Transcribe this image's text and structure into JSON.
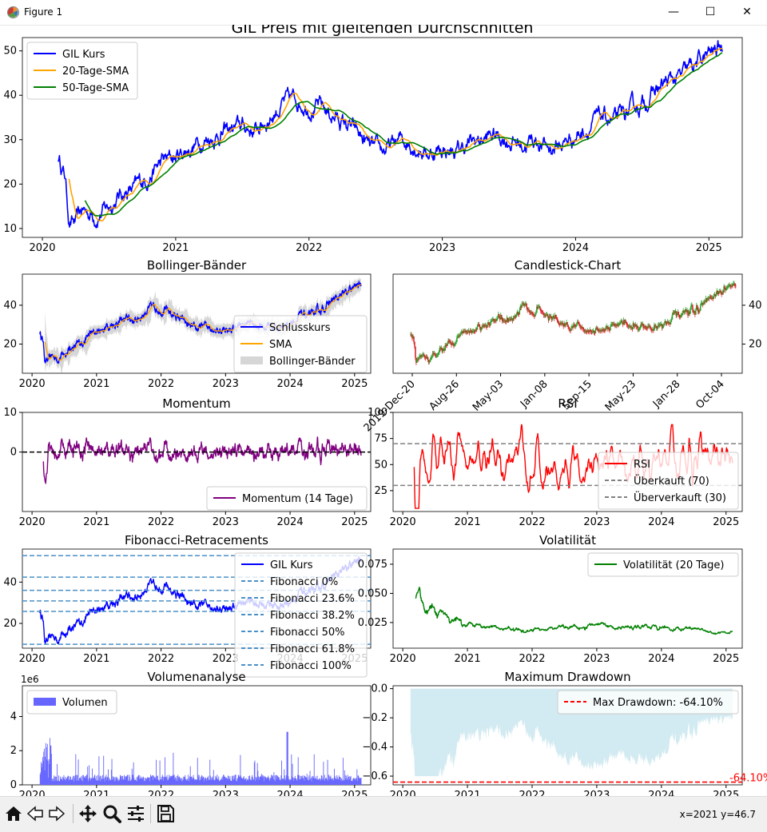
{
  "window": {
    "title": "Figure 1",
    "minimize": "—",
    "maximize": "☐",
    "close": "✕"
  },
  "statusbar": {
    "coords": "x=2021 y=46.7"
  },
  "toolbar": {
    "icons": [
      "home-icon",
      "back-icon",
      "forward-icon",
      "pan-icon",
      "zoom-icon",
      "configure-icon",
      "save-icon"
    ]
  },
  "colors": {
    "price": "#0000ff",
    "sma20": "#ffa500",
    "sma50": "#008000",
    "momentum": "#800080",
    "rsi": "#ff0000",
    "fib": "#4a90c8",
    "drawdown": "#add8e6",
    "volume": "#6666ff"
  },
  "chart_data": [
    {
      "id": "main",
      "type": "line",
      "title": "GIL Preis mit gleitenden Durchschnitten",
      "x_ticks": [
        "2020",
        "2021",
        "2022",
        "2023",
        "2024",
        "2025"
      ],
      "y_ticks": [
        "10",
        "20",
        "30",
        "40",
        "50"
      ],
      "ylim": [
        8,
        53
      ],
      "xlim": [
        2019.85,
        2025.25
      ],
      "legend": [
        "GIL Kurs",
        "20-Tage-SMA",
        "50-Tage-SMA"
      ],
      "legend_loc": "upper left",
      "grid": false,
      "x": [
        2020.12,
        2020.17,
        2020.2,
        2020.25,
        2020.3,
        2020.4,
        2020.5,
        2020.6,
        2020.7,
        2020.8,
        2020.9,
        2021.0,
        2021.1,
        2021.2,
        2021.3,
        2021.4,
        2021.5,
        2021.6,
        2021.7,
        2021.8,
        2021.9,
        2022.0,
        2022.1,
        2022.2,
        2022.3,
        2022.4,
        2022.5,
        2022.6,
        2022.7,
        2022.8,
        2022.9,
        2023.0,
        2023.1,
        2023.2,
        2023.3,
        2023.4,
        2023.5,
        2023.6,
        2023.7,
        2023.8,
        2023.9,
        2024.0,
        2024.1,
        2024.2,
        2024.3,
        2024.4,
        2024.5,
        2024.6,
        2024.7,
        2024.8,
        2024.9,
        2025.0,
        2025.1
      ],
      "series": [
        {
          "name": "GIL Kurs",
          "values": [
            26,
            22,
            12,
            11,
            14,
            13,
            15,
            18,
            19,
            22,
            25,
            26,
            28,
            30,
            31,
            32,
            33,
            32,
            35,
            38,
            39,
            38,
            37,
            35,
            33,
            30,
            27,
            28,
            30,
            29,
            27,
            28,
            27,
            29,
            30,
            31,
            30,
            29,
            30,
            28,
            29,
            31,
            33,
            35,
            34,
            36,
            38,
            41,
            43,
            44,
            47,
            49,
            51
          ]
        },
        {
          "name": "20-Tage-SMA",
          "values": [
            null,
            null,
            null,
            14,
            13,
            13,
            14,
            17,
            19,
            21,
            24,
            26,
            27,
            29,
            30,
            31,
            32,
            32,
            34,
            37,
            38,
            38,
            37,
            35,
            33,
            31,
            28,
            28,
            29,
            29,
            28,
            28,
            27,
            28,
            29,
            30,
            30,
            29,
            29,
            29,
            28,
            30,
            32,
            34,
            34,
            35,
            37,
            40,
            42,
            44,
            46,
            48,
            49
          ]
        },
        {
          "name": "50-Tage-SMA",
          "values": [
            null,
            null,
            null,
            null,
            null,
            15,
            14,
            15,
            17,
            19,
            22,
            24,
            26,
            28,
            29,
            30,
            31,
            32,
            33,
            36,
            37,
            38,
            37,
            36,
            34,
            32,
            29,
            28,
            28,
            29,
            28,
            28,
            28,
            28,
            29,
            29,
            30,
            30,
            29,
            29,
            28,
            29,
            31,
            33,
            34,
            35,
            36,
            38,
            41,
            43,
            45,
            47,
            49
          ]
        }
      ]
    },
    {
      "id": "bollinger",
      "type": "line",
      "title": "Bollinger-Bänder",
      "x_ticks": [
        "2020",
        "2021",
        "2022",
        "2023",
        "2024",
        "2025"
      ],
      "y_ticks": [
        "20",
        "40"
      ],
      "ylim": [
        5,
        56
      ],
      "legend": [
        "Schlusskurs",
        "SMA",
        "Bollinger-Bänder"
      ],
      "legend_loc": "lower right"
    },
    {
      "id": "candlestick",
      "type": "candlestick",
      "title": "Candlestick-Chart",
      "x_ticks": [
        "2019-Dec-20",
        "Aug-26",
        "May-03",
        "Jan-08",
        "Sep-15",
        "May-23",
        "Jan-28",
        "Oct-04"
      ],
      "y_ticks": [
        "20",
        "40"
      ],
      "ylim": [
        5,
        56
      ],
      "y_axis_side": "right"
    },
    {
      "id": "momentum",
      "type": "line",
      "title": "Momentum",
      "x_ticks": [
        "2020",
        "2021",
        "2022",
        "2023",
        "2024",
        "2025"
      ],
      "y_ticks": [
        "0",
        "10"
      ],
      "ylim": [
        -15,
        10
      ],
      "legend": [
        "Momentum (14 Tage)"
      ],
      "legend_loc": "lower right",
      "zero_line": true
    },
    {
      "id": "rsi",
      "type": "line",
      "title": "RSI",
      "x_ticks": [
        "2020",
        "2021",
        "2022",
        "2023",
        "2024",
        "2025"
      ],
      "y_ticks": [
        "25",
        "50",
        "75",
        "100"
      ],
      "ylim": [
        5,
        100
      ],
      "legend": [
        "RSI",
        "Überkauft (70)",
        "Überverkauft (30)"
      ],
      "legend_loc": "lower right",
      "hlines": [
        70,
        30
      ]
    },
    {
      "id": "fibonacci",
      "type": "line",
      "title": "Fibonacci-Retracements",
      "x_ticks": [
        "2020",
        "2021",
        "2022",
        "2023",
        "2024",
        "2025"
      ],
      "y_ticks": [
        "20",
        "40"
      ],
      "ylim": [
        8,
        56
      ],
      "legend": [
        "GIL Kurs",
        "Fibonacci 0%",
        "Fibonacci 23.6%",
        "Fibonacci 38.2%",
        "Fibonacci 50%",
        "Fibonacci 61.8%",
        "Fibonacci 100%"
      ],
      "legend_loc": "upper right",
      "levels": [
        52.8,
        42.4,
        36.0,
        30.9,
        25.8,
        9.9
      ]
    },
    {
      "id": "volatility",
      "type": "line",
      "title": "Volatilität",
      "x_ticks": [
        "2020",
        "2021",
        "2022",
        "2023",
        "2024",
        "2025"
      ],
      "y_ticks": [
        "0.025",
        "0.050",
        "0.075"
      ],
      "ylim": [
        0.003,
        0.088
      ],
      "legend": [
        "Volatilität (20 Tage)"
      ],
      "legend_loc": "upper right"
    },
    {
      "id": "volume",
      "type": "bar",
      "title": "Volumenanalyse",
      "y_offset_label": "1e6",
      "x_ticks": [
        "2020",
        "2021",
        "2022",
        "2023",
        "2024",
        "2025"
      ],
      "y_ticks": [
        "0",
        "2",
        "4"
      ],
      "ylim": [
        0,
        5.8
      ],
      "legend": [
        "Volumen"
      ],
      "legend_loc": "upper left"
    },
    {
      "id": "drawdown",
      "type": "area",
      "title": "Maximum Drawdown",
      "x_ticks": [
        "2020",
        "2021",
        "2022",
        "2023",
        "2024",
        "2025"
      ],
      "y_ticks": [
        "0.0",
        "−0.2",
        "−0.4",
        "−0.6"
      ],
      "ylim": [
        -0.66,
        0.02
      ],
      "legend": [
        "Max Drawdown: -64.10%"
      ],
      "legend_loc": "upper right",
      "max_drawdown": -0.641,
      "max_drawdown_label": "-64.10%"
    }
  ]
}
